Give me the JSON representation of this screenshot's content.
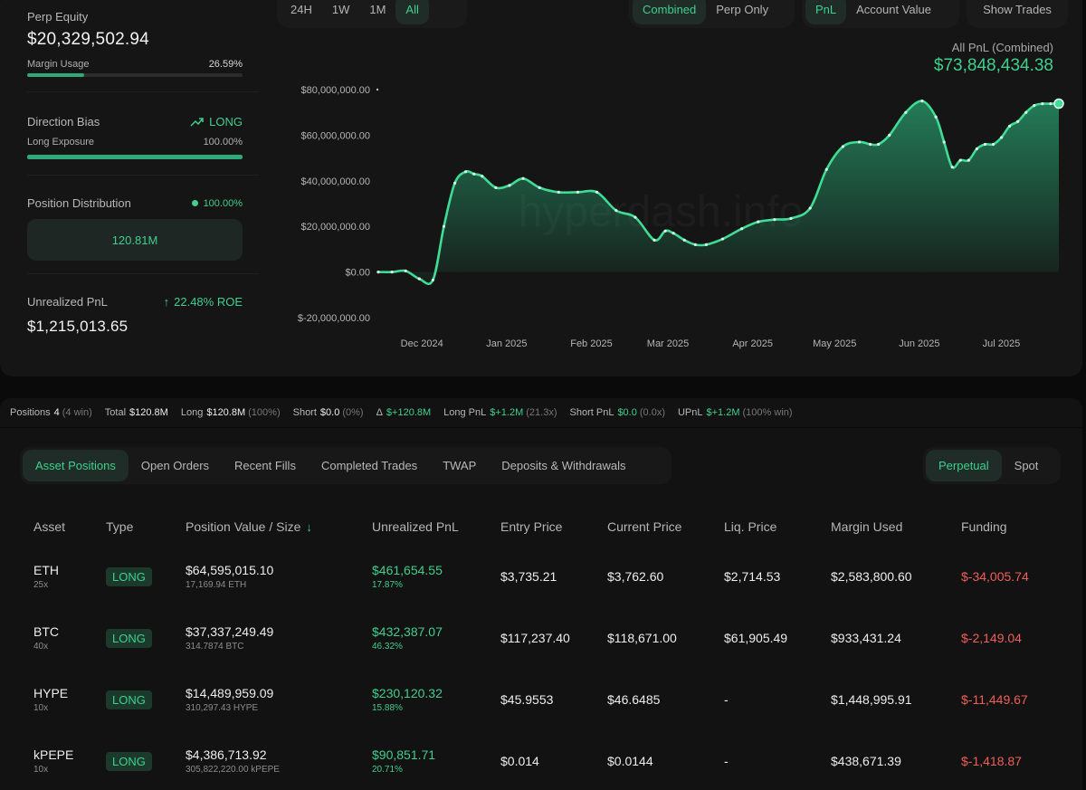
{
  "equity": {
    "label": "Perp Equity",
    "value": "$20,329,502.94",
    "margin_label": "Margin Usage",
    "margin_pct": "26.59%",
    "margin_fraction": 0.2659
  },
  "bias": {
    "label": "Direction Bias",
    "value": "LONG",
    "exposure_label": "Long Exposure",
    "exposure_pct": "100.00%",
    "exposure_fraction": 1.0
  },
  "distribution": {
    "label": "Position Distribution",
    "pct": "100.00%",
    "amount": "120.81M"
  },
  "unrealized": {
    "label": "Unrealized PnL",
    "roe": "22.48% ROE",
    "value": "$1,215,013.65"
  },
  "toolbar": {
    "ranges": [
      "24H",
      "1W",
      "1M",
      "All"
    ],
    "active_range": "All",
    "modes": [
      "Combined",
      "Perp Only"
    ],
    "active_mode": "Combined",
    "metrics": [
      "PnL",
      "Account Value"
    ],
    "active_metric": "PnL",
    "show_trades": "Show Trades"
  },
  "chart_header": {
    "title": "All PnL (Combined)",
    "value": "$73,848,434.38"
  },
  "chart_data": {
    "type": "area",
    "title": "",
    "xlabel": "",
    "ylabel": "",
    "watermark": "hyperdash.info",
    "x_ticks": [
      "Dec 2024",
      "Jan 2025",
      "Feb 2025",
      "Mar 2025",
      "Apr 2025",
      "May 2025",
      "Jun 2025",
      "Jul 2025"
    ],
    "y_ticks": [
      "$80,000,000.00",
      "$60,000,000.00",
      "$40,000,000.00",
      "$20,000,000.00",
      "$0.00",
      "$-20,000,000.00"
    ],
    "ylim": [
      -20000000,
      80000000
    ],
    "xlim": [
      "2024-11-20",
      "2025-07-27"
    ],
    "grid": false,
    "series": [
      {
        "x": [
          "2024-11-20",
          "2024-11-25",
          "2024-11-30",
          "2024-12-05",
          "2024-12-10",
          "2024-12-14",
          "2024-12-18",
          "2024-12-22",
          "2024-12-25",
          "2024-12-28",
          "2025-01-02",
          "2025-01-07",
          "2025-01-12",
          "2025-01-18",
          "2025-01-25",
          "2025-02-01",
          "2025-02-08",
          "2025-02-15",
          "2025-02-22",
          "2025-03-01",
          "2025-03-05",
          "2025-03-08",
          "2025-03-12",
          "2025-03-16",
          "2025-03-20",
          "2025-03-26",
          "2025-04-02",
          "2025-04-08",
          "2025-04-14",
          "2025-04-20",
          "2025-04-27",
          "2025-05-03",
          "2025-05-09",
          "2025-05-15",
          "2025-05-19",
          "2025-05-22",
          "2025-05-26",
          "2025-06-01",
          "2025-06-07",
          "2025-06-12",
          "2025-06-15",
          "2025-06-18",
          "2025-06-21",
          "2025-06-24",
          "2025-06-27",
          "2025-06-30",
          "2025-07-03",
          "2025-07-06",
          "2025-07-09",
          "2025-07-12",
          "2025-07-15",
          "2025-07-18",
          "2025-07-21",
          "2025-07-24",
          "2025-07-27"
        ],
        "values": [
          0,
          0,
          500000,
          -3000000,
          -3500000,
          20000000,
          39000000,
          44000000,
          43000000,
          42000000,
          37000000,
          38000000,
          41000000,
          37000000,
          35000000,
          35000000,
          35000000,
          27000000,
          24000000,
          14000000,
          18000000,
          17000000,
          14000000,
          12000000,
          12000000,
          14500000,
          19000000,
          22000000,
          23000000,
          23500000,
          28000000,
          45000000,
          55000000,
          57000000,
          56000000,
          56000000,
          60000000,
          70000000,
          75000000,
          68000000,
          57000000,
          46000000,
          49000000,
          49000000,
          54000000,
          56000000,
          56000000,
          59000000,
          64000000,
          66000000,
          70000000,
          73000000,
          73800000,
          73800000,
          73848434
        ]
      }
    ]
  },
  "summary": {
    "positions_k": "Positions",
    "positions_v": "4",
    "positions_s": "(4 win)",
    "total_k": "Total",
    "total_v": "$120.8M",
    "long_k": "Long",
    "long_v": "$120.8M",
    "long_s": "(100%)",
    "short_k": "Short",
    "short_v": "$0.0",
    "short_s": "(0%)",
    "delta_k": "Δ",
    "delta_v": "$+120.8M",
    "longpnl_k": "Long PnL",
    "longpnl_v": "$+1.2M",
    "longpnl_s": "(21.3x)",
    "shortpnl_k": "Short PnL",
    "shortpnl_v": "$0.0",
    "shortpnl_s": "(0.0x)",
    "upnl_k": "UPnL",
    "upnl_v": "$+1.2M",
    "upnl_s": "(100% win)"
  },
  "tabs": [
    "Asset Positions",
    "Open Orders",
    "Recent Fills",
    "Completed Trades",
    "TWAP",
    "Deposits & Withdrawals"
  ],
  "active_tab": "Asset Positions",
  "market_tabs": [
    "Perpetual",
    "Spot"
  ],
  "active_market": "Perpetual",
  "table": {
    "headers": [
      "Asset",
      "Type",
      "Position Value / Size",
      "Unrealized PnL",
      "Entry Price",
      "Current Price",
      "Liq. Price",
      "Margin Used",
      "Funding"
    ],
    "rows": [
      {
        "asset": "ETH",
        "lev": "25x",
        "type": "LONG",
        "value": "$64,595,015.10",
        "size": "17,169.94 ETH",
        "pnl": "$461,654.55",
        "pnl_pct": "17.87%",
        "entry": "$3,735.21",
        "current": "$3,762.60",
        "liq": "$2,714.53",
        "margin": "$2,583,800.60",
        "funding": "$-34,005.74"
      },
      {
        "asset": "BTC",
        "lev": "40x",
        "type": "LONG",
        "value": "$37,337,249.49",
        "size": "314.7874 BTC",
        "pnl": "$432,387.07",
        "pnl_pct": "46.32%",
        "entry": "$117,237.40",
        "current": "$118,671.00",
        "liq": "$61,905.49",
        "margin": "$933,431.24",
        "funding": "$-2,149.04"
      },
      {
        "asset": "HYPE",
        "lev": "10x",
        "type": "LONG",
        "value": "$14,489,959.09",
        "size": "310,297.43 HYPE",
        "pnl": "$230,120.32",
        "pnl_pct": "15.88%",
        "entry": "$45.9553",
        "current": "$46.6485",
        "liq": "-",
        "margin": "$1,448,995.91",
        "funding": "$-11,449.67"
      },
      {
        "asset": "kPEPE",
        "lev": "10x",
        "type": "LONG",
        "value": "$4,386,713.92",
        "size": "305,822,220.00 kPEPE",
        "pnl": "$90,851.71",
        "pnl_pct": "20.71%",
        "entry": "$0.014",
        "current": "$0.0144",
        "liq": "-",
        "margin": "$438,671.39",
        "funding": "$-1,418.87"
      }
    ]
  }
}
